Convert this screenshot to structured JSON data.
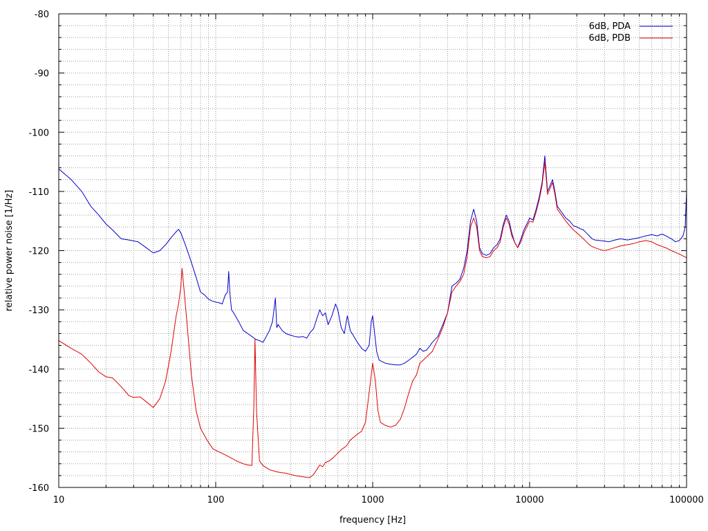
{
  "chart_data": {
    "type": "line",
    "xlabel": "frequency [Hz]",
    "ylabel": "relative power noise [1/Hz]",
    "x_scale": "log",
    "xlim": [
      10,
      100000
    ],
    "ylim": [
      -160,
      -80
    ],
    "x_ticks": [
      "10",
      "100",
      "1000",
      "10000",
      "100000"
    ],
    "y_ticks": [
      "-80",
      "-90",
      "-100",
      "-110",
      "-120",
      "-130",
      "-140",
      "-150",
      "-160"
    ],
    "grid": true,
    "legend_position": "top-right",
    "series": [
      {
        "name": "6dB, PDA",
        "color": "#0000cc",
        "points": [
          [
            10,
            -106.2
          ],
          [
            12,
            -108
          ],
          [
            14,
            -110
          ],
          [
            16,
            -112.5
          ],
          [
            18,
            -114
          ],
          [
            20,
            -115.5
          ],
          [
            22,
            -116.5
          ],
          [
            25,
            -118
          ],
          [
            28,
            -118.2
          ],
          [
            32,
            -118.5
          ],
          [
            36,
            -119.5
          ],
          [
            40,
            -120.4
          ],
          [
            44,
            -120
          ],
          [
            48,
            -119
          ],
          [
            52,
            -117.8
          ],
          [
            56,
            -116.8
          ],
          [
            58,
            -116.4
          ],
          [
            60,
            -117
          ],
          [
            64,
            -119
          ],
          [
            68,
            -121
          ],
          [
            72,
            -123
          ],
          [
            76,
            -125
          ],
          [
            80,
            -127
          ],
          [
            85,
            -127.5
          ],
          [
            90,
            -128.2
          ],
          [
            95,
            -128.5
          ],
          [
            100,
            -128.7
          ],
          [
            105,
            -128.8
          ],
          [
            110,
            -129
          ],
          [
            115,
            -127.5
          ],
          [
            119,
            -127
          ],
          [
            121,
            -123.5
          ],
          [
            123,
            -127
          ],
          [
            126,
            -130
          ],
          [
            130,
            -130.5
          ],
          [
            140,
            -132
          ],
          [
            150,
            -133.5
          ],
          [
            160,
            -134
          ],
          [
            170,
            -134.5
          ],
          [
            180,
            -135
          ],
          [
            190,
            -135.2
          ],
          [
            200,
            -135.5
          ],
          [
            210,
            -134.5
          ],
          [
            220,
            -133.5
          ],
          [
            230,
            -132
          ],
          [
            240,
            -128
          ],
          [
            245,
            -133
          ],
          [
            250,
            -132.5
          ],
          [
            265,
            -133.5
          ],
          [
            280,
            -134
          ],
          [
            300,
            -134.3
          ],
          [
            320,
            -134.5
          ],
          [
            340,
            -134.6
          ],
          [
            360,
            -134.5
          ],
          [
            380,
            -134.8
          ],
          [
            400,
            -133.8
          ],
          [
            420,
            -133.2
          ],
          [
            440,
            -131.5
          ],
          [
            460,
            -130
          ],
          [
            480,
            -131
          ],
          [
            500,
            -130.5
          ],
          [
            520,
            -132.5
          ],
          [
            550,
            -131
          ],
          [
            580,
            -129
          ],
          [
            600,
            -130
          ],
          [
            630,
            -133
          ],
          [
            660,
            -134
          ],
          [
            690,
            -131
          ],
          [
            720,
            -133.5
          ],
          [
            760,
            -134.5
          ],
          [
            800,
            -135.5
          ],
          [
            850,
            -136.5
          ],
          [
            900,
            -137
          ],
          [
            950,
            -136
          ],
          [
            980,
            -132
          ],
          [
            1000,
            -131
          ],
          [
            1030,
            -134
          ],
          [
            1060,
            -137
          ],
          [
            1100,
            -138.5
          ],
          [
            1200,
            -139
          ],
          [
            1300,
            -139.2
          ],
          [
            1400,
            -139.3
          ],
          [
            1500,
            -139.3
          ],
          [
            1600,
            -139
          ],
          [
            1700,
            -138.5
          ],
          [
            1800,
            -138
          ],
          [
            1900,
            -137.5
          ],
          [
            2000,
            -136.5
          ],
          [
            2100,
            -137
          ],
          [
            2200,
            -136.8
          ],
          [
            2300,
            -136.2
          ],
          [
            2400,
            -135.5
          ],
          [
            2600,
            -134.5
          ],
          [
            2800,
            -132.5
          ],
          [
            3000,
            -130.5
          ],
          [
            3200,
            -126
          ],
          [
            3400,
            -125.5
          ],
          [
            3600,
            -124.8
          ],
          [
            3800,
            -123
          ],
          [
            4000,
            -120
          ],
          [
            4200,
            -115
          ],
          [
            4400,
            -113
          ],
          [
            4600,
            -115
          ],
          [
            4800,
            -119.5
          ],
          [
            5000,
            -120.5
          ],
          [
            5300,
            -120.8
          ],
          [
            5600,
            -120.5
          ],
          [
            5900,
            -119.5
          ],
          [
            6200,
            -119
          ],
          [
            6500,
            -118
          ],
          [
            6800,
            -115.5
          ],
          [
            7100,
            -114
          ],
          [
            7400,
            -115
          ],
          [
            7700,
            -117
          ],
          [
            8000,
            -118.5
          ],
          [
            8400,
            -119.5
          ],
          [
            8800,
            -118
          ],
          [
            9200,
            -116.5
          ],
          [
            9600,
            -115.5
          ],
          [
            10000,
            -114.5
          ],
          [
            10500,
            -114.8
          ],
          [
            11000,
            -113
          ],
          [
            11500,
            -111
          ],
          [
            12000,
            -108.5
          ],
          [
            12500,
            -104
          ],
          [
            13000,
            -110
          ],
          [
            13500,
            -109
          ],
          [
            14000,
            -108
          ],
          [
            14500,
            -110
          ],
          [
            15000,
            -112.5
          ],
          [
            16000,
            -113.5
          ],
          [
            17000,
            -114.5
          ],
          [
            18000,
            -115
          ],
          [
            19000,
            -115.8
          ],
          [
            20000,
            -116
          ],
          [
            21000,
            -116.3
          ],
          [
            22000,
            -116.5
          ],
          [
            23000,
            -117
          ],
          [
            24000,
            -117.5
          ],
          [
            25000,
            -118
          ],
          [
            26000,
            -118.2
          ],
          [
            28000,
            -118.3
          ],
          [
            30000,
            -118.4
          ],
          [
            32000,
            -118.5
          ],
          [
            35000,
            -118.2
          ],
          [
            38000,
            -118
          ],
          [
            42000,
            -118.2
          ],
          [
            46000,
            -118
          ],
          [
            50000,
            -117.8
          ],
          [
            55000,
            -117.5
          ],
          [
            60000,
            -117.3
          ],
          [
            65000,
            -117.5
          ],
          [
            70000,
            -117.2
          ],
          [
            75000,
            -117.6
          ],
          [
            80000,
            -118
          ],
          [
            85000,
            -118.5
          ],
          [
            90000,
            -118.3
          ],
          [
            95000,
            -117.5
          ],
          [
            98000,
            -116
          ],
          [
            100000,
            -110
          ]
        ]
      },
      {
        "name": "6dB, PDB",
        "color": "#dd0000",
        "points": [
          [
            10,
            -135.2
          ],
          [
            12,
            -136.5
          ],
          [
            14,
            -137.5
          ],
          [
            16,
            -139
          ],
          [
            18,
            -140.5
          ],
          [
            20,
            -141.3
          ],
          [
            22,
            -141.5
          ],
          [
            24,
            -142.5
          ],
          [
            26,
            -143.5
          ],
          [
            28,
            -144.5
          ],
          [
            30,
            -144.8
          ],
          [
            33,
            -144.7
          ],
          [
            36,
            -145.5
          ],
          [
            40,
            -146.5
          ],
          [
            44,
            -145
          ],
          [
            48,
            -142
          ],
          [
            52,
            -137
          ],
          [
            56,
            -131
          ],
          [
            58,
            -129
          ],
          [
            60,
            -126
          ],
          [
            61,
            -123
          ],
          [
            63,
            -127
          ],
          [
            66,
            -133
          ],
          [
            70,
            -141
          ],
          [
            75,
            -147
          ],
          [
            80,
            -150
          ],
          [
            88,
            -152
          ],
          [
            96,
            -153.5
          ],
          [
            105,
            -154
          ],
          [
            115,
            -154.5
          ],
          [
            125,
            -155
          ],
          [
            135,
            -155.5
          ],
          [
            150,
            -156
          ],
          [
            160,
            -156.2
          ],
          [
            170,
            -156.3
          ],
          [
            175,
            -146
          ],
          [
            178,
            -135
          ],
          [
            182,
            -147
          ],
          [
            190,
            -155.5
          ],
          [
            200,
            -156.3
          ],
          [
            220,
            -157
          ],
          [
            240,
            -157.3
          ],
          [
            260,
            -157.5
          ],
          [
            280,
            -157.6
          ],
          [
            300,
            -157.8
          ],
          [
            320,
            -158
          ],
          [
            340,
            -158.1
          ],
          [
            360,
            -158.2
          ],
          [
            380,
            -158.3
          ],
          [
            400,
            -158.3
          ],
          [
            420,
            -157.8
          ],
          [
            440,
            -157
          ],
          [
            460,
            -156.2
          ],
          [
            480,
            -156.5
          ],
          [
            500,
            -155.8
          ],
          [
            530,
            -155.5
          ],
          [
            560,
            -155
          ],
          [
            600,
            -154.2
          ],
          [
            640,
            -153.5
          ],
          [
            680,
            -153
          ],
          [
            720,
            -152
          ],
          [
            760,
            -151.5
          ],
          [
            800,
            -151
          ],
          [
            850,
            -150.5
          ],
          [
            900,
            -149
          ],
          [
            950,
            -144
          ],
          [
            980,
            -141
          ],
          [
            1000,
            -139
          ],
          [
            1040,
            -142
          ],
          [
            1080,
            -147
          ],
          [
            1120,
            -149
          ],
          [
            1200,
            -149.5
          ],
          [
            1300,
            -149.8
          ],
          [
            1400,
            -149.5
          ],
          [
            1500,
            -148.5
          ],
          [
            1600,
            -146.5
          ],
          [
            1700,
            -144
          ],
          [
            1800,
            -142
          ],
          [
            1900,
            -141
          ],
          [
            2000,
            -139
          ],
          [
            2200,
            -138
          ],
          [
            2400,
            -137
          ],
          [
            2600,
            -135
          ],
          [
            2800,
            -133
          ],
          [
            3000,
            -130.5
          ],
          [
            3200,
            -127
          ],
          [
            3400,
            -126
          ],
          [
            3600,
            -125.2
          ],
          [
            3800,
            -124
          ],
          [
            4000,
            -121
          ],
          [
            4200,
            -116
          ],
          [
            4400,
            -114.5
          ],
          [
            4600,
            -116
          ],
          [
            4800,
            -120
          ],
          [
            5000,
            -121
          ],
          [
            5300,
            -121.2
          ],
          [
            5600,
            -121
          ],
          [
            5900,
            -120
          ],
          [
            6200,
            -119.5
          ],
          [
            6500,
            -118.5
          ],
          [
            6800,
            -116
          ],
          [
            7100,
            -114.5
          ],
          [
            7400,
            -115.5
          ],
          [
            7700,
            -117.5
          ],
          [
            8000,
            -118.5
          ],
          [
            8400,
            -119.5
          ],
          [
            8800,
            -118.5
          ],
          [
            9200,
            -117
          ],
          [
            9600,
            -116
          ],
          [
            10000,
            -115
          ],
          [
            10500,
            -115.2
          ],
          [
            11000,
            -113.5
          ],
          [
            11500,
            -111.5
          ],
          [
            12000,
            -109
          ],
          [
            12500,
            -105
          ],
          [
            13000,
            -110.5
          ],
          [
            13500,
            -109.5
          ],
          [
            14000,
            -108.5
          ],
          [
            14500,
            -110.5
          ],
          [
            15000,
            -113
          ],
          [
            16000,
            -114
          ],
          [
            17000,
            -115
          ],
          [
            18000,
            -115.8
          ],
          [
            19000,
            -116.5
          ],
          [
            20000,
            -117
          ],
          [
            21000,
            -117.5
          ],
          [
            22000,
            -118
          ],
          [
            23000,
            -118.5
          ],
          [
            24000,
            -119
          ],
          [
            25000,
            -119.3
          ],
          [
            26000,
            -119.5
          ],
          [
            28000,
            -119.8
          ],
          [
            30000,
            -120
          ],
          [
            32000,
            -119.8
          ],
          [
            35000,
            -119.5
          ],
          [
            38000,
            -119.2
          ],
          [
            42000,
            -119
          ],
          [
            46000,
            -118.8
          ],
          [
            50000,
            -118.5
          ],
          [
            55000,
            -118.3
          ],
          [
            60000,
            -118.5
          ],
          [
            65000,
            -119
          ],
          [
            70000,
            -119.3
          ],
          [
            75000,
            -119.6
          ],
          [
            80000,
            -120
          ],
          [
            85000,
            -120.3
          ],
          [
            90000,
            -120.6
          ],
          [
            95000,
            -120.9
          ],
          [
            100000,
            -121.2
          ]
        ]
      }
    ]
  }
}
